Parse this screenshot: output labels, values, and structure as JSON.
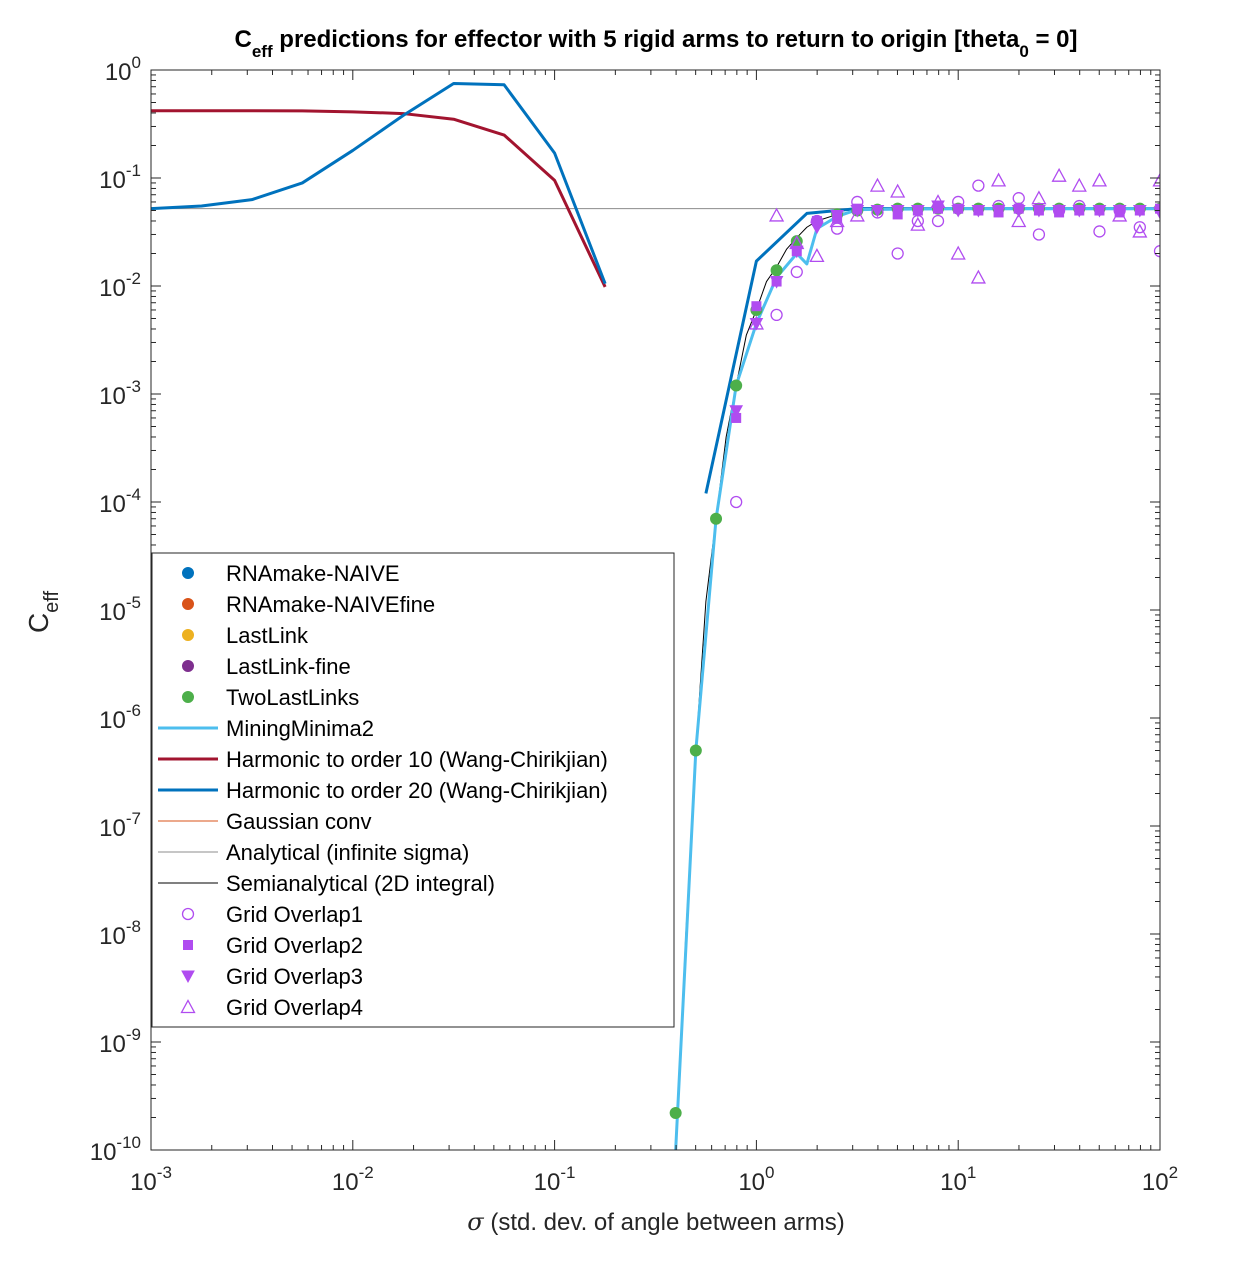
{
  "chart_data": {
    "type": "line",
    "title": "C",
    "title_sub": "eff",
    "title_rest": " predictions for effector with 5 rigid arms to return to origin [theta",
    "title_sub2": "0",
    "title_end": " = 0]",
    "xlabel_symbol": "σ",
    "xlabel": " (std. dev. of angle between arms)",
    "ylabel": "C",
    "ylabel_sub": "eff",
    "xscale": "log",
    "yscale": "log",
    "xlim": [
      0.001,
      100
    ],
    "ylim": [
      1e-10,
      1
    ],
    "x_ticks": [
      {
        "value": 0.001,
        "base": "10",
        "exp": "-3"
      },
      {
        "value": 0.01,
        "base": "10",
        "exp": "-2"
      },
      {
        "value": 0.1,
        "base": "10",
        "exp": "-1"
      },
      {
        "value": 1,
        "base": "10",
        "exp": "0"
      },
      {
        "value": 10,
        "base": "10",
        "exp": "1"
      },
      {
        "value": 100,
        "base": "10",
        "exp": "2"
      }
    ],
    "y_ticks": [
      {
        "value": 1e-10,
        "base": "10",
        "exp": "-10"
      },
      {
        "value": 1e-09,
        "base": "10",
        "exp": "-9"
      },
      {
        "value": 1e-08,
        "base": "10",
        "exp": "-8"
      },
      {
        "value": 1e-07,
        "base": "10",
        "exp": "-7"
      },
      {
        "value": 1e-06,
        "base": "10",
        "exp": "-6"
      },
      {
        "value": 1e-05,
        "base": "10",
        "exp": "-5"
      },
      {
        "value": 0.0001,
        "base": "10",
        "exp": "-4"
      },
      {
        "value": 0.001,
        "base": "10",
        "exp": "-3"
      },
      {
        "value": 0.01,
        "base": "10",
        "exp": "-2"
      },
      {
        "value": 0.1,
        "base": "10",
        "exp": "-1"
      },
      {
        "value": 1,
        "base": "10",
        "exp": "0"
      }
    ],
    "grid": false,
    "legend_position": "lower-left",
    "series": [
      {
        "name": "RNAmake-NAIVE",
        "kind": "marker",
        "marker": "filled-circle",
        "color": "#0072bd",
        "x": [],
        "y": []
      },
      {
        "name": "RNAmake-NAIVEfine",
        "kind": "marker",
        "marker": "filled-circle",
        "color": "#d95319",
        "x": [],
        "y": []
      },
      {
        "name": "LastLink",
        "kind": "marker",
        "marker": "filled-circle",
        "color": "#edb120",
        "x": [],
        "y": []
      },
      {
        "name": "LastLink-fine",
        "kind": "marker",
        "marker": "filled-circle",
        "color": "#7e2f8e",
        "x": [],
        "y": []
      },
      {
        "name": "TwoLastLinks",
        "kind": "marker",
        "marker": "filled-circle",
        "color": "#4daf4a",
        "x": [
          0.398,
          0.501,
          0.631,
          0.794,
          1.0,
          1.259,
          1.585,
          1.995,
          2.512,
          3.162,
          3.981,
          5.012,
          6.31,
          7.943,
          10.0,
          12.59,
          15.85,
          19.95,
          25.12,
          31.62,
          39.81,
          50.12,
          63.1,
          79.43,
          100.0
        ],
        "y": [
          2.2e-10,
          5e-07,
          7e-05,
          0.0012,
          0.006,
          0.014,
          0.026,
          0.04,
          0.046,
          0.05,
          0.051,
          0.052,
          0.052,
          0.052,
          0.052,
          0.052,
          0.052,
          0.052,
          0.052,
          0.052,
          0.052,
          0.052,
          0.052,
          0.052,
          0.052
        ]
      },
      {
        "name": "MiningMinima2",
        "kind": "line",
        "color": "#4dbeee",
        "width": 3,
        "x": [
          0.398,
          0.501,
          0.631,
          0.794,
          1.0,
          1.259,
          1.585,
          1.778,
          1.995,
          2.512,
          3.162,
          10.0,
          100.0
        ],
        "y": [
          1e-10,
          5e-07,
          7e-05,
          0.0012,
          0.0045,
          0.012,
          0.02,
          0.016,
          0.034,
          0.044,
          0.051,
          0.052,
          0.052
        ]
      },
      {
        "name": "Harmonic to order 10 (Wang-Chirikjian)",
        "kind": "line",
        "color": "#a2142f",
        "width": 3,
        "x": [
          0.001,
          0.00178,
          0.00316,
          0.00562,
          0.01,
          0.0178,
          0.0316,
          0.0562,
          0.1,
          0.178
        ],
        "y": [
          0.42,
          0.42,
          0.42,
          0.418,
          0.41,
          0.395,
          0.35,
          0.25,
          0.095,
          0.0098
        ]
      },
      {
        "name": "Harmonic to order 20 (Wang-Chirikjian)",
        "kind": "line",
        "color": "#0072bd",
        "width": 3,
        "segments": [
          {
            "x": [
              0.001,
              0.00178,
              0.00316,
              0.00562,
              0.01,
              0.0178,
              0.0316,
              0.0562,
              0.1,
              0.178
            ],
            "y": [
              0.052,
              0.055,
              0.063,
              0.09,
              0.18,
              0.38,
              0.75,
              0.73,
              0.17,
              0.0105
            ]
          },
          {
            "x": [
              0.562,
              1.0,
              1.778,
              3.162,
              5.623,
              10.0,
              17.78,
              31.62,
              56.23,
              100.0
            ],
            "y": [
              0.00012,
              0.017,
              0.047,
              0.052,
              0.052,
              0.052,
              0.052,
              0.052,
              0.052,
              0.052
            ]
          }
        ]
      },
      {
        "name": "Gaussian conv",
        "kind": "line",
        "color": "#d95319",
        "width": 1,
        "x": [],
        "y": []
      },
      {
        "name": "Analytical (infinite sigma)",
        "kind": "line",
        "color": "#8c8c8c",
        "width": 1,
        "x": [
          0.001,
          100.0
        ],
        "y": [
          0.052,
          0.052
        ]
      },
      {
        "name": "Semianalytical (2D integral)",
        "kind": "line",
        "color": "#000000",
        "width": 1,
        "x": [
          0.398,
          0.447,
          0.501,
          0.562,
          0.631,
          0.708,
          0.794,
          0.891,
          1.0,
          1.122,
          1.259,
          1.413,
          1.585,
          1.778,
          1.995,
          2.512,
          3.162,
          5.012,
          10.0,
          31.62,
          100.0
        ],
        "y": [
          1e-10,
          1e-08,
          5e-07,
          1.2e-05,
          7e-05,
          0.0004,
          0.0012,
          0.0035,
          0.006,
          0.011,
          0.015,
          0.022,
          0.028,
          0.035,
          0.04,
          0.046,
          0.05,
          0.052,
          0.052,
          0.052,
          0.052
        ]
      },
      {
        "name": "Grid Overlap1",
        "kind": "marker",
        "marker": "open-circle",
        "color": "#b04cf0",
        "x": [
          0.794,
          1.259,
          1.585,
          1.995,
          2.512,
          3.162,
          3.981,
          5.012,
          6.31,
          7.943,
          10.0,
          12.59,
          15.85,
          19.95,
          25.12,
          31.62,
          39.81,
          50.12,
          63.1,
          79.43,
          100.0
        ],
        "y": [
          0.0001,
          0.0054,
          0.0135,
          0.04,
          0.034,
          0.06,
          0.048,
          0.02,
          0.04,
          0.04,
          0.06,
          0.085,
          0.055,
          0.065,
          0.03,
          0.05,
          0.055,
          0.032,
          0.05,
          0.035,
          0.021
        ]
      },
      {
        "name": "Grid Overlap2",
        "kind": "marker",
        "marker": "filled-square",
        "color": "#b04cf0",
        "x": [
          0.794,
          1.0,
          1.259,
          1.585,
          1.995,
          2.512,
          3.162,
          5.012,
          6.31,
          7.943,
          10.0,
          12.59,
          15.85,
          19.95,
          25.12,
          31.62,
          39.81,
          50.12,
          63.1,
          79.43,
          100.0
        ],
        "y": [
          0.0006,
          0.0065,
          0.011,
          0.021,
          0.04,
          0.042,
          0.052,
          0.046,
          0.05,
          0.052,
          0.052,
          0.05,
          0.048,
          0.052,
          0.05,
          0.048,
          0.05,
          0.05,
          0.048,
          0.05,
          0.052
        ]
      },
      {
        "name": "Grid Overlap3",
        "kind": "marker",
        "marker": "filled-triangle-down",
        "color": "#b04cf0",
        "x": [
          0.794,
          1.0,
          1.259,
          1.585,
          1.995,
          2.512,
          3.162,
          3.981,
          5.012,
          6.31,
          7.943,
          10.0,
          12.59,
          15.85,
          19.95,
          25.12,
          31.62,
          39.81,
          50.12,
          63.1,
          79.43,
          100.0
        ],
        "y": [
          0.0007,
          0.0045,
          0.011,
          0.021,
          0.035,
          0.045,
          0.05,
          0.05,
          0.05,
          0.05,
          0.055,
          0.05,
          0.05,
          0.05,
          0.05,
          0.05,
          0.05,
          0.05,
          0.05,
          0.05,
          0.05,
          0.048
        ]
      },
      {
        "name": "Grid Overlap4",
        "kind": "marker",
        "marker": "open-triangle-up",
        "color": "#b04cf0",
        "x": [
          1.0,
          1.259,
          1.585,
          1.995,
          2.512,
          3.162,
          3.981,
          5.012,
          6.31,
          7.943,
          10.0,
          12.59,
          15.85,
          19.95,
          25.12,
          31.62,
          39.81,
          50.12,
          63.1,
          79.43,
          100.0
        ],
        "y": [
          0.0045,
          0.045,
          0.025,
          0.019,
          0.04,
          0.045,
          0.085,
          0.075,
          0.037,
          0.06,
          0.02,
          0.012,
          0.095,
          0.04,
          0.065,
          0.105,
          0.085,
          0.095,
          0.045,
          0.032,
          0.095
        ]
      }
    ]
  }
}
